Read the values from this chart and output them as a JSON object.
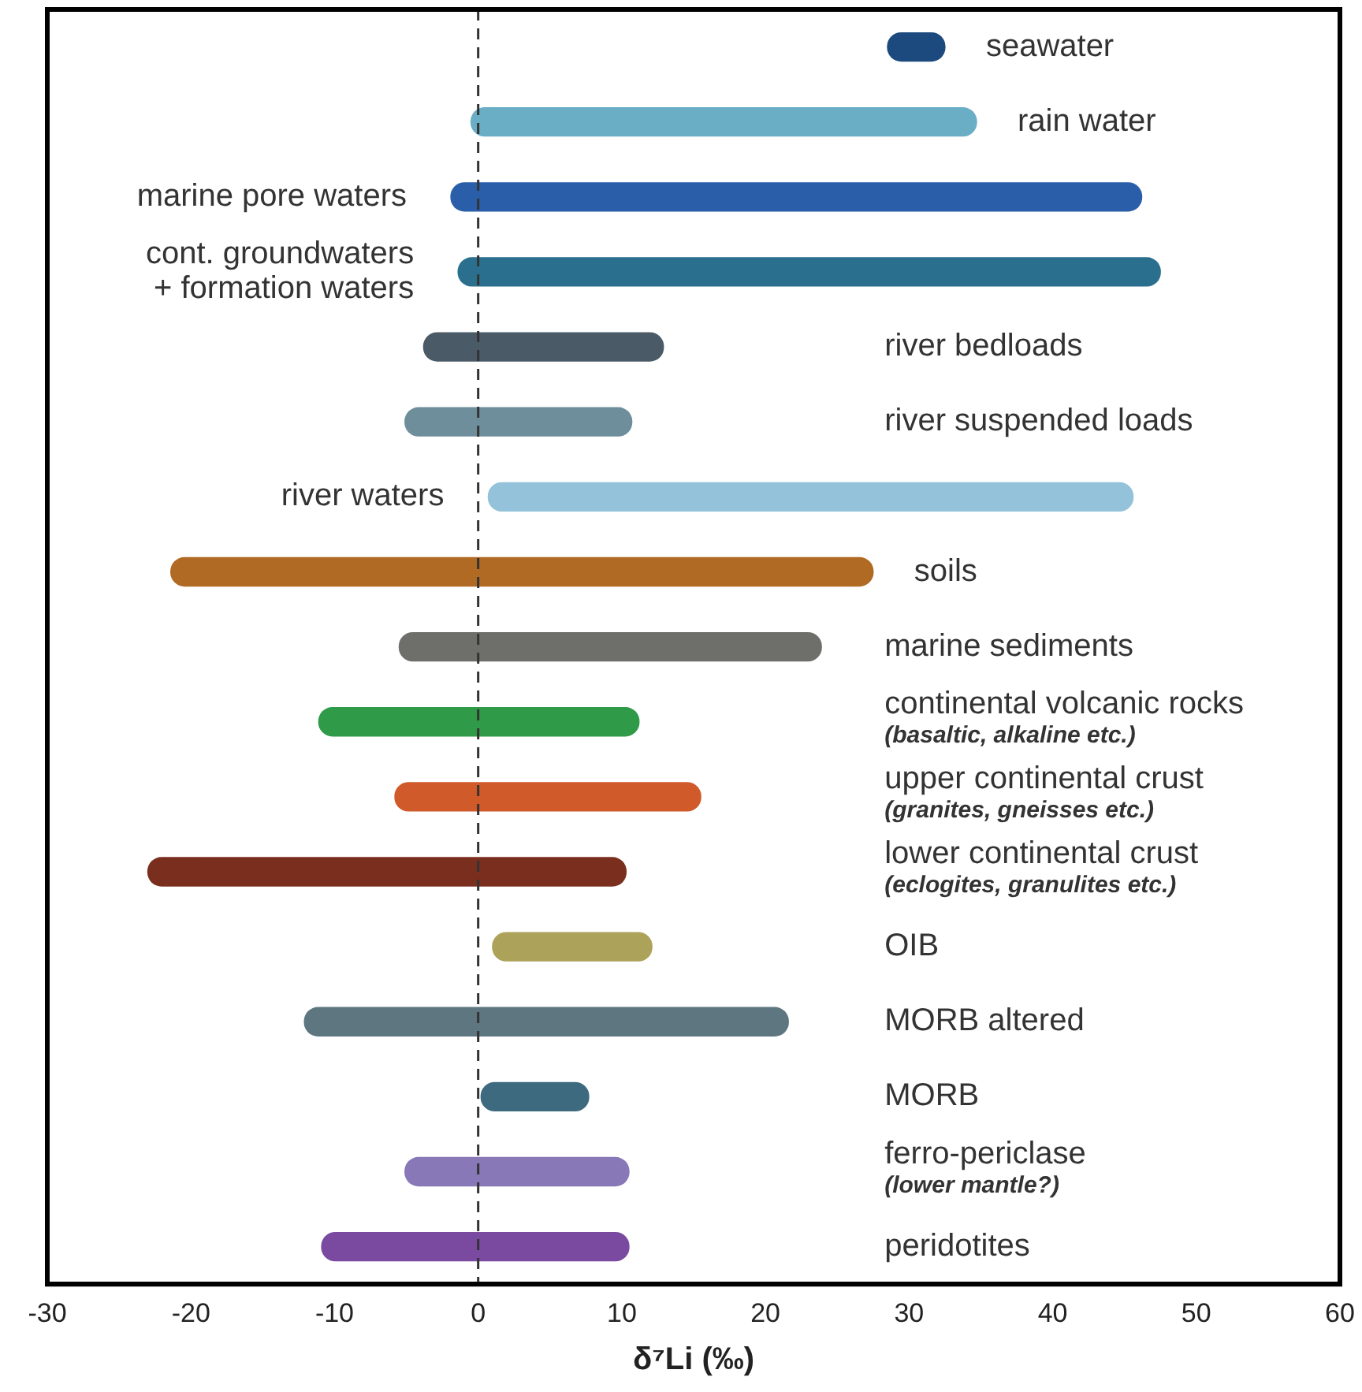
{
  "chart_data": {
    "type": "bar",
    "orientation": "horizontal",
    "xlabel": "δ⁷Li (‰)",
    "categories": [
      "seawater",
      "rain water",
      "marine pore waters",
      "cont. groundwaters\n+ formation waters",
      "river bedloads",
      "river suspended loads",
      "river waters",
      "soils",
      "marine sediments",
      "continental volcanic rocks\n(basaltic, alkaline etc.)",
      "upper continental crust\n(granites, gneisses etc.)",
      "lower continental crust\n(eclogites, granulites etc.)",
      "OIB",
      "MORB altered",
      "MORB",
      "ferro-periclase\n(lower mantle?)",
      "peridotites"
    ],
    "base": [
      28.5,
      -0.5,
      -1.9,
      -1.4,
      -3.8,
      -5.1,
      0.7,
      -21.4,
      -5.5,
      -11.1,
      -5.8,
      -23,
      1,
      -12.1,
      0.2,
      -5.1,
      -10.9
    ],
    "values": [
      4,
      35.2,
      48.1,
      48.9,
      16.7,
      15.8,
      44.9,
      48.9,
      29.4,
      22.3,
      21.3,
      33.3,
      11.1,
      33.7,
      7.5,
      15.6,
      21.4
    ],
    "colors": [
      "#1d4a7e",
      "#6aaec6",
      "#2a5ea8",
      "#2a6f8e",
      "#4a5a66",
      "#6e8e9c",
      "#93c2da",
      "#b06a24",
      "#6e6e6a",
      "#2f9a48",
      "#d05a2a",
      "#7a2e1e",
      "#ada25a",
      "#5e7680",
      "#3e6a80",
      "#8878b8",
      "#7a4aa0"
    ],
    "xlim": [
      -30,
      60
    ],
    "xticks": [
      -30,
      -20,
      -10,
      0,
      10,
      20,
      30,
      40,
      50,
      60
    ],
    "ref_lines": [
      {
        "axis": "x",
        "value": 0,
        "line_style": "dashed",
        "color": "#333333"
      }
    ],
    "grid": false,
    "legend": false,
    "tick_labels": "x"
  }
}
